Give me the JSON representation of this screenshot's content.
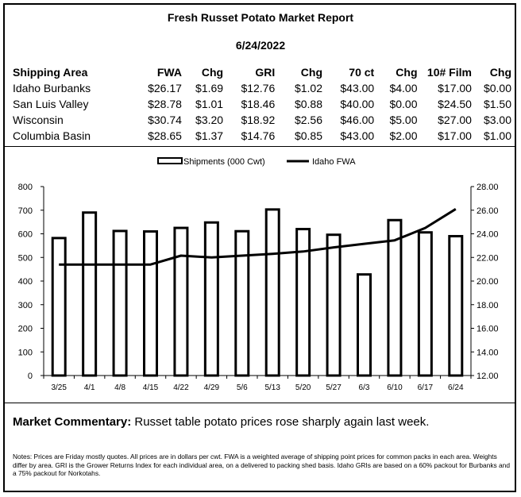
{
  "report": {
    "title": "Fresh Russet Potato Market Report",
    "date": "6/24/2022"
  },
  "table": {
    "headers": [
      "Shipping Area",
      "FWA",
      "Chg",
      "GRI",
      "Chg",
      "70 ct",
      "Chg",
      "10# Film",
      "Chg"
    ],
    "rows": [
      [
        "Idaho Burbanks",
        "$26.17",
        "$1.69",
        "$12.76",
        "$1.02",
        "$43.00",
        "$4.00",
        "$17.00",
        "$0.00"
      ],
      [
        "San Luis Valley",
        "$28.78",
        "$1.01",
        "$18.46",
        "$0.88",
        "$40.00",
        "$0.00",
        "$24.50",
        "$1.50"
      ],
      [
        "Wisconsin",
        "$30.74",
        "$3.20",
        "$18.92",
        "$2.56",
        "$46.00",
        "$5.00",
        "$27.00",
        "$3.00"
      ],
      [
        "Columbia Basin",
        "$28.65",
        "$1.37",
        "$14.76",
        "$0.85",
        "$43.00",
        "$2.00",
        "$17.00",
        "$1.00"
      ]
    ]
  },
  "chart_data": {
    "type": "bar",
    "categories": [
      "3/25",
      "4/1",
      "4/8",
      "4/15",
      "4/22",
      "4/29",
      "5/6",
      "5/13",
      "5/20",
      "5/27",
      "6/3",
      "6/10",
      "6/17",
      "6/24"
    ],
    "series": [
      {
        "name": "Shipments (000 Cwt)",
        "type": "bar",
        "axis": "left",
        "values": [
          582,
          690,
          612,
          610,
          625,
          648,
          611,
          703,
          620,
          596,
          428,
          658,
          606,
          590
        ]
      },
      {
        "name": "Idaho FWA",
        "type": "line",
        "axis": "right",
        "values": [
          21.4,
          21.4,
          21.4,
          21.4,
          22.15,
          22.0,
          22.15,
          22.3,
          22.5,
          22.85,
          23.15,
          23.45,
          24.5,
          26.1
        ]
      }
    ],
    "y_left": {
      "min": 0,
      "max": 800,
      "step": 100,
      "ticks": [
        "0",
        "100",
        "200",
        "300",
        "400",
        "500",
        "600",
        "700",
        "800"
      ]
    },
    "y_right": {
      "min": 12,
      "max": 28,
      "step": 2,
      "ticks": [
        "12.00",
        "14.00",
        "16.00",
        "18.00",
        "20.00",
        "22.00",
        "24.00",
        "26.00",
        "28.00"
      ]
    },
    "legend_position": "top-center",
    "grid": false,
    "colors": {
      "bar_fill": "#ffffff",
      "bar_stroke": "#000000",
      "line": "#000000"
    }
  },
  "commentary": {
    "label": "Market Commentary:",
    "text": " Russet table potato prices rose sharply again last week."
  },
  "notes": "Notes: Prices are Friday mostly quotes. All prices are in dollars per cwt. FWA is a weighted average of shipping point prices for  common packs in each area. Weights differ by area. GRI is the Grower Returns Index for each individual area, on a delivered to packing shed basis. Idaho GRIs are based on a 60% packout for Burbanks and a 75% packout for Norkotahs."
}
